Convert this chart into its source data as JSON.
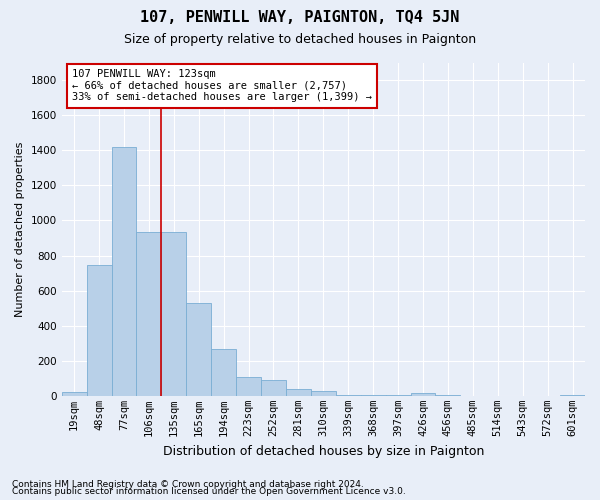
{
  "title": "107, PENWILL WAY, PAIGNTON, TQ4 5JN",
  "subtitle": "Size of property relative to detached houses in Paignton",
  "xlabel": "Distribution of detached houses by size in Paignton",
  "ylabel": "Number of detached properties",
  "footer1": "Contains HM Land Registry data © Crown copyright and database right 2024.",
  "footer2": "Contains public sector information licensed under the Open Government Licence v3.0.",
  "categories": [
    "19sqm",
    "48sqm",
    "77sqm",
    "106sqm",
    "135sqm",
    "165sqm",
    "194sqm",
    "223sqm",
    "252sqm",
    "281sqm",
    "310sqm",
    "339sqm",
    "368sqm",
    "397sqm",
    "426sqm",
    "456sqm",
    "485sqm",
    "514sqm",
    "543sqm",
    "572sqm",
    "601sqm"
  ],
  "values": [
    22,
    745,
    1420,
    935,
    935,
    530,
    265,
    105,
    90,
    40,
    28,
    5,
    5,
    5,
    15,
    5,
    0,
    0,
    0,
    0,
    5
  ],
  "bar_color": "#b8d0e8",
  "bar_edge_color": "#7aaed4",
  "annotation_text1": "107 PENWILL WAY: 123sqm",
  "annotation_text2": "← 66% of detached houses are smaller (2,757)",
  "annotation_text3": "33% of semi-detached houses are larger (1,399) →",
  "vline_x": 3.5,
  "ylim": [
    0,
    1900
  ],
  "yticks": [
    0,
    200,
    400,
    600,
    800,
    1000,
    1200,
    1400,
    1600,
    1800
  ],
  "bg_color": "#e8eef8",
  "plot_bg_color": "#e8eef8",
  "grid_color": "#ffffff",
  "annotation_box_facecolor": "#ffffff",
  "annotation_box_edgecolor": "#cc0000",
  "vline_color": "#cc0000",
  "title_fontsize": 11,
  "subtitle_fontsize": 9,
  "tick_fontsize": 7.5,
  "ylabel_fontsize": 8,
  "xlabel_fontsize": 9,
  "footer_fontsize": 6.5
}
